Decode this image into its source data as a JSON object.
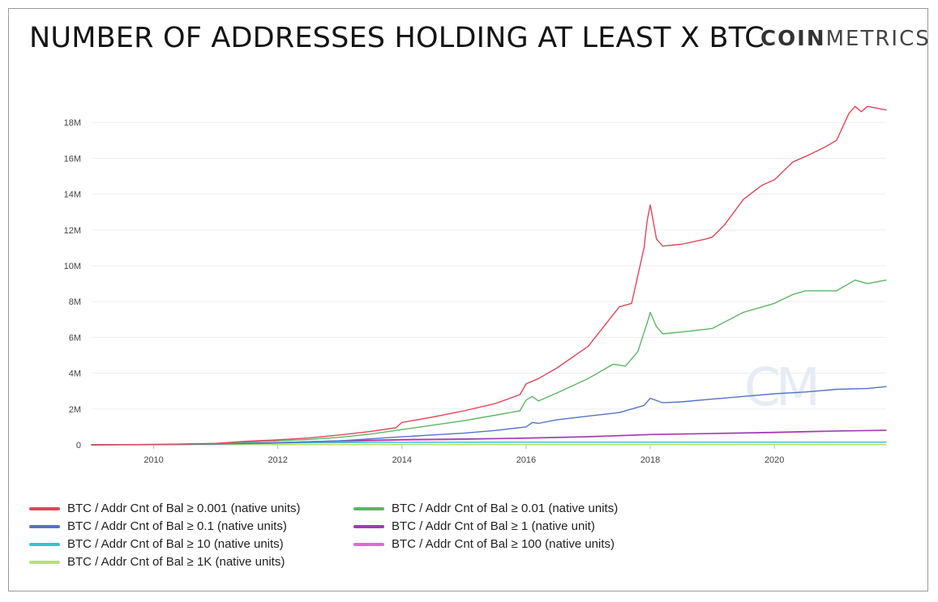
{
  "header": {
    "title": "NUMBER OF ADDRESSES HOLDING AT LEAST X BTC",
    "logo_bold": "COIN",
    "logo_light": "METRICS"
  },
  "watermark": {
    "text": "CM"
  },
  "chart_data": {
    "type": "line",
    "title": "NUMBER OF ADDRESSES HOLDING AT LEAST X BTC",
    "xlabel": "",
    "ylabel": "",
    "xlim": [
      2009.0,
      2021.8
    ],
    "ylim": [
      0,
      20000000
    ],
    "x_ticks": [
      2010,
      2012,
      2014,
      2016,
      2018,
      2020
    ],
    "y_ticks": [
      {
        "value": 0,
        "label": "0"
      },
      {
        "value": 2000000,
        "label": "2M"
      },
      {
        "value": 4000000,
        "label": "4M"
      },
      {
        "value": 6000000,
        "label": "6M"
      },
      {
        "value": 8000000,
        "label": "8M"
      },
      {
        "value": 10000000,
        "label": "10M"
      },
      {
        "value": 12000000,
        "label": "12M"
      },
      {
        "value": 14000000,
        "label": "14M"
      },
      {
        "value": 16000000,
        "label": "16M"
      },
      {
        "value": 18000000,
        "label": "18M"
      }
    ],
    "grid": true,
    "legend_position": "bottom",
    "series": [
      {
        "name": "BTC / Addr Cnt of Bal ≥ 0.001 (native units)",
        "color": "#e0465a",
        "x": [
          2009.0,
          2010.0,
          2011.0,
          2011.5,
          2012.0,
          2012.5,
          2013.0,
          2013.5,
          2013.9,
          2014.0,
          2014.5,
          2015.0,
          2015.5,
          2015.9,
          2016.0,
          2016.2,
          2016.3,
          2016.5,
          2017.0,
          2017.5,
          2017.7,
          2017.9,
          2017.95,
          2018.0,
          2018.1,
          2018.2,
          2018.5,
          2018.9,
          2019.0,
          2019.2,
          2019.5,
          2019.8,
          2020.0,
          2020.3,
          2020.5,
          2020.8,
          2021.0,
          2021.2,
          2021.3,
          2021.4,
          2021.5,
          2021.8
        ],
        "y": [
          0,
          20000,
          80000,
          200000,
          280000,
          380000,
          550000,
          750000,
          950000,
          1250000,
          1550000,
          1900000,
          2300000,
          2800000,
          3400000,
          3700000,
          3900000,
          4300000,
          5500000,
          7700000,
          7900000,
          11000000,
          12500000,
          13400000,
          11500000,
          11100000,
          11200000,
          11500000,
          11600000,
          12300000,
          13700000,
          14500000,
          14800000,
          15800000,
          16100000,
          16600000,
          17000000,
          18500000,
          18900000,
          18600000,
          18900000,
          18700000
        ]
      },
      {
        "name": "BTC / Addr Cnt of Bal ≥ 0.01 (native units)",
        "color": "#5cb665",
        "x": [
          2009.0,
          2010.0,
          2011.0,
          2011.5,
          2012.0,
          2012.5,
          2013.0,
          2013.5,
          2014.0,
          2014.5,
          2015.0,
          2015.5,
          2015.9,
          2016.0,
          2016.1,
          2016.2,
          2016.5,
          2017.0,
          2017.4,
          2017.6,
          2017.8,
          2017.95,
          2018.0,
          2018.1,
          2018.2,
          2018.5,
          2019.0,
          2019.5,
          2020.0,
          2020.3,
          2020.5,
          2021.0,
          2021.3,
          2021.5,
          2021.8
        ],
        "y": [
          0,
          15000,
          60000,
          150000,
          220000,
          300000,
          420000,
          600000,
          850000,
          1100000,
          1350000,
          1650000,
          1900000,
          2500000,
          2700000,
          2450000,
          2900000,
          3700000,
          4500000,
          4400000,
          5200000,
          6800000,
          7400000,
          6600000,
          6200000,
          6300000,
          6500000,
          7400000,
          7900000,
          8400000,
          8600000,
          8600000,
          9200000,
          9000000,
          9200000
        ]
      },
      {
        "name": "BTC / Addr Cnt of Bal ≥ 0.1 (native units)",
        "color": "#5672c9",
        "x": [
          2009.0,
          2010.0,
          2011.0,
          2012.0,
          2013.0,
          2014.0,
          2014.5,
          2015.0,
          2015.5,
          2016.0,
          2016.1,
          2016.2,
          2016.5,
          2017.0,
          2017.5,
          2017.9,
          2018.0,
          2018.2,
          2018.5,
          2019.0,
          2019.5,
          2020.0,
          2020.5,
          2021.0,
          2021.5,
          2021.8
        ],
        "y": [
          0,
          10000,
          40000,
          120000,
          220000,
          450000,
          550000,
          650000,
          800000,
          1000000,
          1250000,
          1200000,
          1400000,
          1600000,
          1800000,
          2200000,
          2600000,
          2350000,
          2400000,
          2550000,
          2700000,
          2850000,
          2950000,
          3100000,
          3150000,
          3250000
        ]
      },
      {
        "name": "BTC / Addr Cnt of Bal ≥ 1 (native unit)",
        "color": "#9b3fae",
        "x": [
          2009.0,
          2010.0,
          2011.0,
          2012.0,
          2013.0,
          2014.0,
          2015.0,
          2016.0,
          2017.0,
          2018.0,
          2019.0,
          2020.0,
          2021.0,
          2021.8
        ],
        "y": [
          0,
          20000,
          60000,
          120000,
          220000,
          300000,
          330000,
          380000,
          460000,
          580000,
          640000,
          700000,
          780000,
          820000
        ]
      },
      {
        "name": "BTC / Addr Cnt of Bal ≥ 10 (native units)",
        "color": "#35c3cc",
        "x": [
          2009.0,
          2010.0,
          2011.0,
          2012.0,
          2014.0,
          2016.0,
          2018.0,
          2020.0,
          2021.8
        ],
        "y": [
          0,
          10000,
          40000,
          100000,
          140000,
          150000,
          150000,
          150000,
          150000
        ]
      },
      {
        "name": "BTC / Addr Cnt of Bal ≥ 100 (native units)",
        "color": "#e467d4",
        "x": [
          2009.0,
          2010.0,
          2011.0,
          2012.0,
          2013.0,
          2014.0,
          2015.0,
          2016.0,
          2017.0,
          2018.0,
          2019.0,
          2020.0,
          2021.0,
          2021.8
        ],
        "y": [
          0,
          10000,
          40000,
          90000,
          180000,
          260000,
          300000,
          360000,
          440000,
          560000,
          620000,
          680000,
          760000,
          800000
        ]
      },
      {
        "name": "BTC / Addr Cnt of Bal ≥ 1K (native units)",
        "color": "#b5e36a",
        "x": [
          2009.0,
          2010.0,
          2011.0,
          2012.0,
          2014.0,
          2016.0,
          2018.0,
          2020.0,
          2021.8
        ],
        "y": [
          0,
          5000,
          10000,
          15000,
          16000,
          17000,
          17000,
          17000,
          17000
        ]
      }
    ],
    "legend": [
      {
        "label": "BTC / Addr Cnt of Bal ≥ 0.001 (native units)",
        "color": "#e0465a"
      },
      {
        "label": "BTC / Addr Cnt of Bal ≥ 0.01 (native units)",
        "color": "#5cb665"
      },
      {
        "label": "BTC / Addr Cnt of Bal ≥ 0.1 (native units)",
        "color": "#5672c9"
      },
      {
        "label": "BTC / Addr Cnt of Bal ≥ 1 (native unit)",
        "color": "#9b3fae"
      },
      {
        "label": "BTC / Addr Cnt of Bal ≥ 10 (native units)",
        "color": "#35c3cc"
      },
      {
        "label": "BTC / Addr Cnt of Bal ≥ 100 (native units)",
        "color": "#e467d4"
      },
      {
        "label": "BTC / Addr Cnt of Bal ≥ 1K (native units)",
        "color": "#b5e36a"
      }
    ]
  }
}
